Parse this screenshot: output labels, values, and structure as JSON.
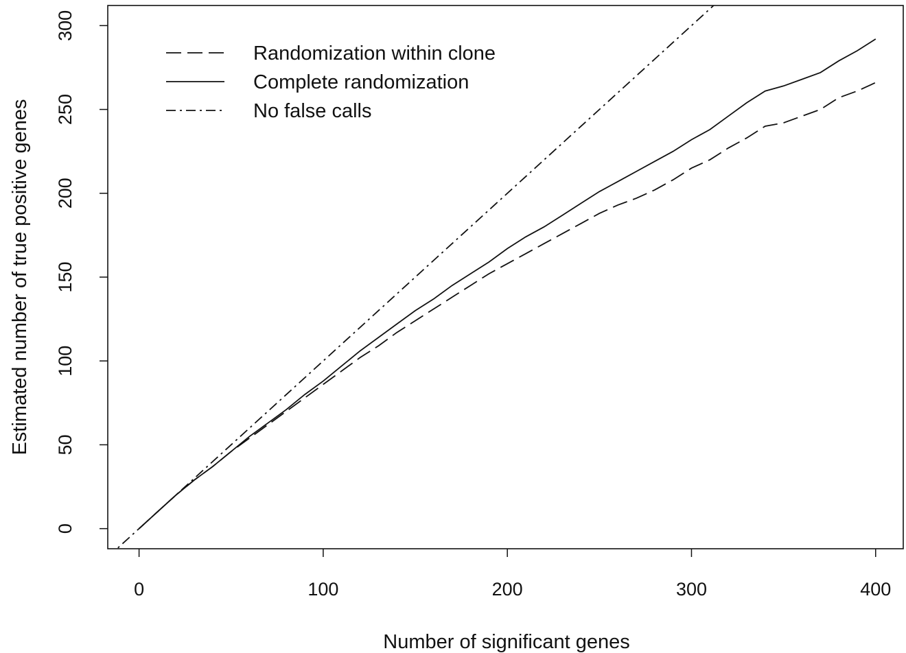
{
  "chart_data": {
    "type": "line",
    "title": "",
    "xlabel": "Number of significant genes",
    "ylabel": "Estimated number of true positive genes",
    "xlim": [
      -17,
      415
    ],
    "ylim": [
      -12,
      312
    ],
    "xticks": [
      0,
      100,
      200,
      300,
      400
    ],
    "yticks": [
      0,
      50,
      100,
      150,
      200,
      250,
      300
    ],
    "grid": false,
    "legend_position": "top-left",
    "series": [
      {
        "name": "Randomization within clone",
        "style": "dashed",
        "x": [
          0,
          10,
          20,
          30,
          40,
          50,
          60,
          70,
          80,
          90,
          100,
          110,
          120,
          130,
          140,
          150,
          160,
          170,
          180,
          190,
          200,
          210,
          220,
          230,
          240,
          250,
          260,
          270,
          280,
          290,
          300,
          310,
          320,
          330,
          340,
          350,
          360,
          370,
          380,
          390,
          400
        ],
        "values": [
          0,
          10,
          20,
          29,
          37,
          46,
          54,
          62,
          70,
          78,
          86,
          94,
          102,
          109,
          117,
          124,
          131,
          138,
          145,
          152,
          158,
          164,
          170,
          176,
          182,
          188,
          193,
          197,
          202,
          208,
          215,
          220,
          227,
          233,
          240,
          242,
          246,
          250,
          257,
          261,
          266
        ]
      },
      {
        "name": "Complete randomization",
        "style": "solid",
        "x": [
          0,
          10,
          20,
          30,
          40,
          50,
          60,
          70,
          80,
          90,
          100,
          110,
          120,
          130,
          140,
          150,
          160,
          170,
          180,
          190,
          200,
          210,
          220,
          230,
          240,
          250,
          260,
          270,
          280,
          290,
          300,
          310,
          320,
          330,
          340,
          350,
          360,
          370,
          380,
          390,
          400
        ],
        "values": [
          0,
          10,
          20,
          29,
          37,
          46,
          55,
          63,
          71,
          80,
          88,
          97,
          106,
          114,
          122,
          130,
          137,
          145,
          152,
          159,
          167,
          174,
          180,
          187,
          194,
          201,
          207,
          213,
          219,
          225,
          232,
          238,
          246,
          254,
          261,
          264,
          268,
          272,
          279,
          285,
          292
        ]
      },
      {
        "name": "No false calls",
        "style": "dashdot",
        "x": [
          -17,
          315
        ],
        "values": [
          -17,
          315
        ]
      }
    ]
  }
}
